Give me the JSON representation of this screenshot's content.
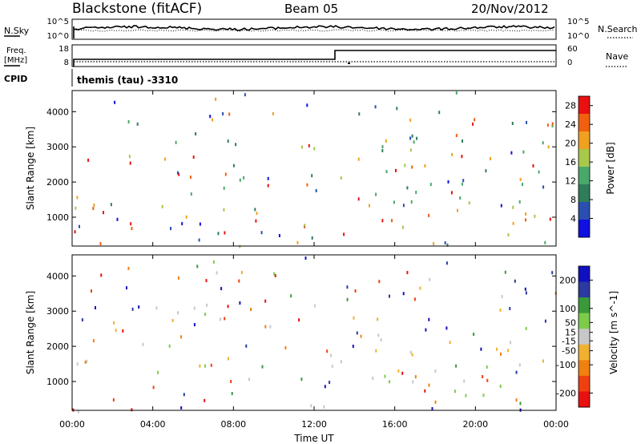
{
  "header": {
    "title": "Blackstone (fitACF)",
    "beam": "Beam 05",
    "date": "20/Nov/2012"
  },
  "noise_panel": {
    "left_label": "N.Sky",
    "left_ticks": [
      "10^5",
      "10^0"
    ],
    "right_ticks": [
      "10^5",
      "10^0"
    ],
    "right_label": "N.Search"
  },
  "freq_panel": {
    "left_label_line1": "Freq.",
    "left_label_line2": "[MHz]",
    "left_ticks": [
      "18",
      "8"
    ],
    "right_ticks": [
      "60",
      "0"
    ],
    "right_label": "Nave",
    "cpid_label": "CPID",
    "cpid_text": "themis (tau) -3310"
  },
  "colors": {
    "power_scale": [
      "#1010e0",
      "#2a4fb0",
      "#2f7d5a",
      "#4aa86a",
      "#a8c84a",
      "#f0a020",
      "#f06010",
      "#e81010"
    ],
    "velocity_scale": [
      "#e81010",
      "#f04010",
      "#f08010",
      "#f0b030",
      "#c8c8c8",
      "#7ccc4a",
      "#3a9a3a",
      "#2a3aa0",
      "#1010c0"
    ],
    "noise_line": "#000000"
  },
  "chart_data": [
    {
      "type": "heatmap",
      "title": "Power",
      "xlabel": "",
      "ylabel": "Slant Range [km]",
      "xlim_hours": [
        0,
        24
      ],
      "ylim_km": [
        180,
        4600
      ],
      "x_ticks": [
        "00:00",
        "04:00",
        "08:00",
        "12:00",
        "16:00",
        "20:00",
        "00:00"
      ],
      "y_ticks": [
        1000,
        2000,
        3000,
        4000
      ],
      "colorbar": {
        "label": "Power [dB]",
        "ticks": [
          4,
          8,
          12,
          16,
          20,
          24,
          28
        ],
        "range": [
          0,
          30
        ]
      },
      "scatter_bands": [
        {
          "x_start": 0.0,
          "x_end": 1.6,
          "y_low": 1250,
          "y_high": 1700,
          "level": 0.6
        },
        {
          "x_start": 1.2,
          "x_end": 1.9,
          "y_low": 1700,
          "y_high": 2200,
          "level": 0.3
        },
        {
          "x_start": 3.8,
          "x_end": 7.5,
          "y_low": 950,
          "y_high": 1400,
          "level": 0.45
        },
        {
          "x_start": 6.0,
          "x_end": 8.5,
          "y_low": 2300,
          "y_high": 3400,
          "level": 0.3
        },
        {
          "x_start": 8.0,
          "x_end": 10.0,
          "y_low": 2000,
          "y_high": 2800,
          "level": 0.25
        },
        {
          "x_start": 8.5,
          "x_end": 10.5,
          "y_low": 900,
          "y_high": 1200,
          "level": 0.3
        },
        {
          "x_start": 12.0,
          "x_end": 24.0,
          "y_low": 800,
          "y_high": 1200,
          "level": 0.92
        },
        {
          "x_start": 12.0,
          "x_end": 24.0,
          "y_low": 1200,
          "y_high": 1600,
          "level": 0.6
        },
        {
          "x_start": 12.0,
          "x_end": 24.0,
          "y_low": 1600,
          "y_high": 2300,
          "level": 0.3
        }
      ]
    },
    {
      "type": "heatmap",
      "title": "Velocity",
      "xlabel": "Time UT",
      "ylabel": "Slant Range [km]",
      "xlim_hours": [
        0,
        24
      ],
      "ylim_km": [
        180,
        4600
      ],
      "x_ticks": [
        "00:00",
        "04:00",
        "08:00",
        "12:00",
        "16:00",
        "20:00",
        "00:00"
      ],
      "y_ticks": [
        1000,
        2000,
        3000,
        4000
      ],
      "colorbar": {
        "label": "Velocity [m s^-1]",
        "ticks": [
          200,
          100,
          50,
          15,
          -15,
          -50,
          -100,
          -200
        ],
        "range": [
          -250,
          250
        ]
      },
      "scatter_bands": [
        {
          "x_start": 0.0,
          "x_end": 1.6,
          "y_low": 1250,
          "y_high": 1700,
          "level": 0.5
        },
        {
          "x_start": 4.0,
          "x_end": 6.5,
          "y_low": 1100,
          "y_high": 1500,
          "level": 0.22
        },
        {
          "x_start": 6.0,
          "x_end": 10.5,
          "y_low": 2300,
          "y_high": 3400,
          "level": 0.55
        },
        {
          "x_start": 12.0,
          "x_end": 12.8,
          "y_low": 700,
          "y_high": 2200,
          "level": 0.7
        },
        {
          "x_start": 12.5,
          "x_end": 24.0,
          "y_low": 900,
          "y_high": 1500,
          "level": 0.5
        },
        {
          "x_start": 12.5,
          "x_end": 24.0,
          "y_low": 1500,
          "y_high": 2300,
          "level": 0.5
        }
      ]
    }
  ]
}
